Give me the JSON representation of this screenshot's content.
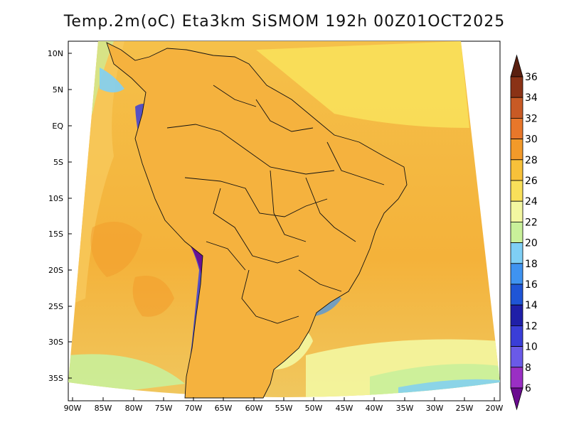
{
  "title": "Temp.2m(oC) Eta3km SiSMOM 192h 00Z01OCT2025",
  "lat_labels": [
    "10N",
    "5N",
    "EQ",
    "5S",
    "10S",
    "15S",
    "20S",
    "25S",
    "30S",
    "35S"
  ],
  "lon_labels": [
    "90W",
    "85W",
    "80W",
    "75W",
    "70W",
    "65W",
    "60W",
    "55W",
    "50W",
    "45W",
    "40W",
    "35W",
    "30W",
    "25W",
    "20W"
  ],
  "colorbar": {
    "levels": [
      "6",
      "8",
      "10",
      "12",
      "14",
      "16",
      "18",
      "20",
      "22",
      "24",
      "26",
      "28",
      "30",
      "32",
      "34",
      "36"
    ],
    "colors": [
      "#6a0b8f",
      "#9a2fc4",
      "#6a5ae8",
      "#3a3ed8",
      "#1f1fa8",
      "#1f55d6",
      "#3f93f0",
      "#7fcff5",
      "#c9f09a",
      "#f3f7a1",
      "#f9e05a",
      "#f7c13a",
      "#f29a2a",
      "#e8772a",
      "#c85a25",
      "#8a3216",
      "#5a2010"
    ],
    "extend": "both"
  },
  "map": {
    "region": "South America",
    "ocean_color": "#f4b43a",
    "land_color": "#f1a23a"
  }
}
